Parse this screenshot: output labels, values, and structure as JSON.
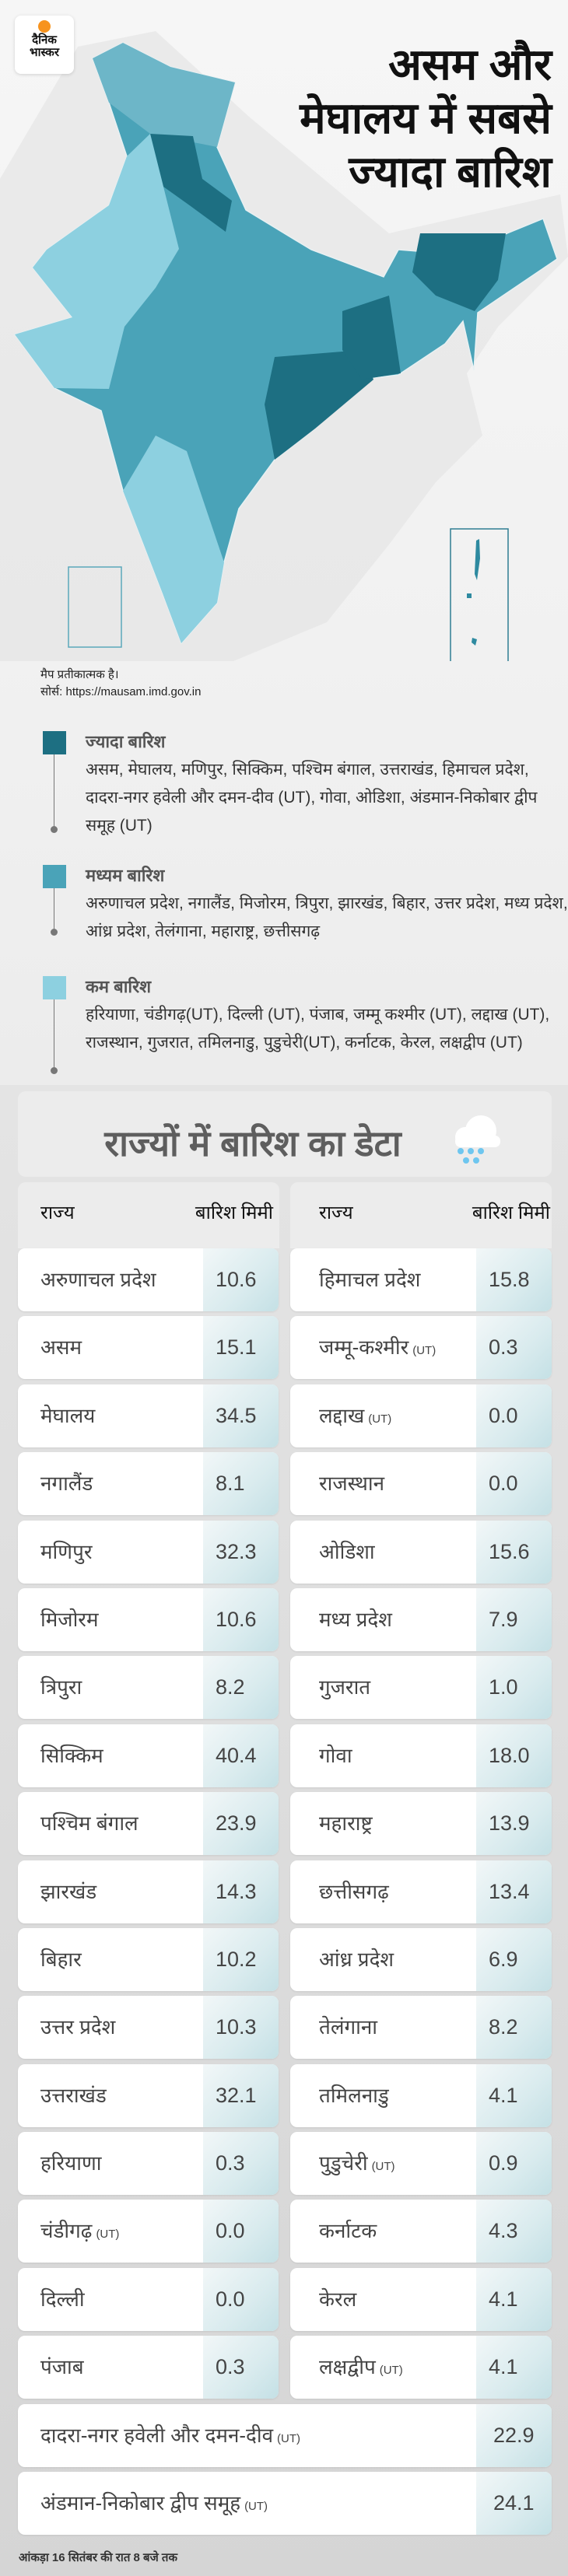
{
  "logo": {
    "line1": "दैनिक",
    "line2": "भास्कर"
  },
  "title": {
    "line1": "असम और",
    "line2": "मेघालय में सबसे",
    "line3": "ज्यादा बारिश"
  },
  "map_note": {
    "line1": "मैप प्रतीकात्मक है।",
    "line2": "सोर्स: https://mausam.imd.gov.in"
  },
  "colors": {
    "high": "#1d6f82",
    "medium": "#4aa3b8",
    "low": "#8dd0e0"
  },
  "legend": [
    {
      "heading": "ज्यादा बारिश",
      "text": "असम, मेघालय, मणिपुर, सिक्किम, पश्चिम बंगाल, उत्तराखंड, हिमाचल प्रदेश, दादरा-नगर हवेली और दमन-दीव (UT), गोवा, ओडिशा, अंडमान-निकोबार द्वीप समूह (UT)"
    },
    {
      "heading": "मध्यम बारिश",
      "text": "अरुणाचल प्रदेश, नगालैंड, मिजोरम, त्रिपुरा, झारखंड, बिहार, उत्तर प्रदेश, मध्य प्रदेश, आंध्र प्रदेश, तेलंगाना, महाराष्ट्र, छत्तीसगढ़"
    },
    {
      "heading": "कम बारिश",
      "text": "हरियाणा, चंडीगढ़(UT), दिल्ली (UT), पंजाब, जम्मू कश्मीर (UT), लद्दाख (UT), राजस्थान, गुजरात, तमिलनाडु, पुडुचेरी(UT), कर्नाटक, केरल, लक्षद्वीप (UT)"
    }
  ],
  "table": {
    "title": "राज्यों में बारिश का डेटा",
    "col_state": "राज्य",
    "col_rain": "बारिश मिमी",
    "left_rows": [
      {
        "state": "अरुणाचल प्रदेश",
        "value": "10.6"
      },
      {
        "state": "असम",
        "value": "15.1"
      },
      {
        "state": "मेघालय",
        "value": "34.5"
      },
      {
        "state": "नगालैंड",
        "value": "8.1"
      },
      {
        "state": "मणिपुर",
        "value": "32.3"
      },
      {
        "state": "मिजोरम",
        "value": "10.6"
      },
      {
        "state": "त्रिपुरा",
        "value": "8.2"
      },
      {
        "state": "सिक्किम",
        "value": "40.4"
      },
      {
        "state": "पश्चिम बंगाल",
        "value": "23.9"
      },
      {
        "state": "झारखंड",
        "value": "14.3"
      },
      {
        "state": "बिहार",
        "value": "10.2"
      },
      {
        "state": "उत्तर प्रदेश",
        "value": "10.3"
      },
      {
        "state": "उत्तराखंड",
        "value": "32.1"
      },
      {
        "state": "हरियाणा",
        "value": "0.3"
      },
      {
        "state": "चंडीगढ़",
        "ut": "(UT)",
        "value": "0.0"
      },
      {
        "state": "दिल्ली",
        "value": "0.0"
      },
      {
        "state": "पंजाब",
        "value": "0.3"
      }
    ],
    "right_rows": [
      {
        "state": "हिमाचल प्रदेश",
        "value": "15.8"
      },
      {
        "state": "जम्मू-कश्मीर",
        "ut": "(UT)",
        "value": "0.3"
      },
      {
        "state": "लद्दाख",
        "ut": "(UT)",
        "value": "0.0"
      },
      {
        "state": "राजस्थान",
        "value": "0.0"
      },
      {
        "state": "ओडिशा",
        "value": "15.6"
      },
      {
        "state": "मध्य प्रदेश",
        "value": "7.9"
      },
      {
        "state": "गुजरात",
        "value": "1.0"
      },
      {
        "state": "गोवा",
        "value": "18.0"
      },
      {
        "state": "महाराष्ट्र",
        "value": "13.9"
      },
      {
        "state": "छत्तीसगढ़",
        "value": "13.4"
      },
      {
        "state": "आंध्र प्रदेश",
        "value": "6.9"
      },
      {
        "state": "तेलंगाना",
        "value": "8.2"
      },
      {
        "state": "तमिलनाडु",
        "value": "4.1"
      },
      {
        "state": "पुडुचेरी",
        "ut": "(UT)",
        "value": "0.9"
      },
      {
        "state": "कर्नाटक",
        "value": "4.3"
      },
      {
        "state": "केरल",
        "value": "4.1"
      },
      {
        "state": "लक्षद्वीप",
        "ut": "(UT)",
        "value": "4.1"
      }
    ],
    "full_rows": [
      {
        "state": "दादरा-नगर हवेली और दमन-दीव",
        "ut": "(UT)",
        "value": "22.9"
      },
      {
        "state": "अंडमान-निकोबार द्वीप समूह",
        "ut": "(UT)",
        "value": "24.1"
      }
    ]
  },
  "footer": "आंकड़ा 16 सितंबर की रात 8 बजे तक"
}
